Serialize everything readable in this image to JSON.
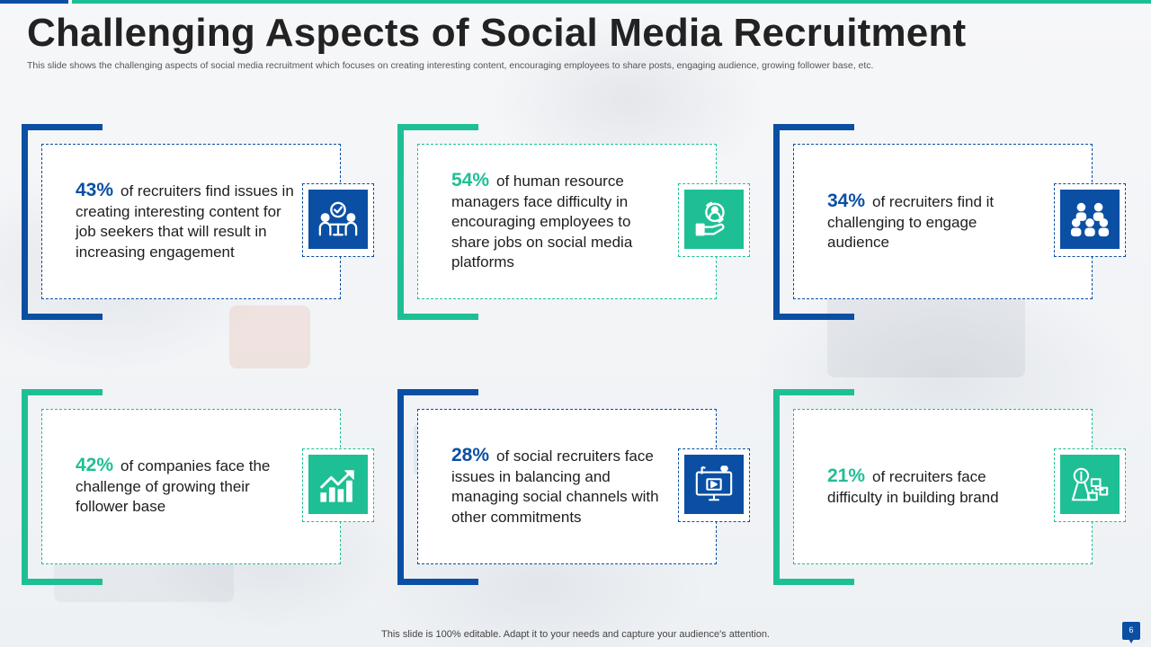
{
  "title": "Challenging Aspects of Social Media Recruitment",
  "subtitle": "This slide shows the challenging aspects of social media recruitment which focuses on creating interesting content, encouraging employees to share posts, engaging audience, growing follower base, etc.",
  "colors": {
    "blue": "#0a4fa3",
    "teal": "#1fbf95",
    "text": "#1e1e1e"
  },
  "cards": [
    {
      "percent": "43%",
      "text": "of recruiters find issues in creating interesting content for job seekers that will result in increasing engagement",
      "icon": "team-meeting-icon",
      "accent": "blue"
    },
    {
      "percent": "54%",
      "text": "of human resource managers face difficulty in encouraging employees to share jobs on social media platforms",
      "icon": "hand-share-icon",
      "accent": "teal"
    },
    {
      "percent": "34%",
      "text": "of recruiters find it challenging to engage audience",
      "icon": "audience-group-icon",
      "accent": "blue"
    },
    {
      "percent": "42%",
      "text": "of companies face the challenge of growing their follower base",
      "icon": "growth-chart-icon",
      "accent": "teal"
    },
    {
      "percent": "28%",
      "text": "of social recruiters face issues in balancing and managing social channels with other commitments",
      "icon": "social-media-screen-icon",
      "accent": "blue"
    },
    {
      "percent": "21%",
      "text": "of recruiters face difficulty in building brand",
      "icon": "brand-strategy-icon",
      "accent": "teal"
    }
  ],
  "footer": "This slide is 100% editable. Adapt it to your needs and capture your audience's attention.",
  "page_number": "6"
}
